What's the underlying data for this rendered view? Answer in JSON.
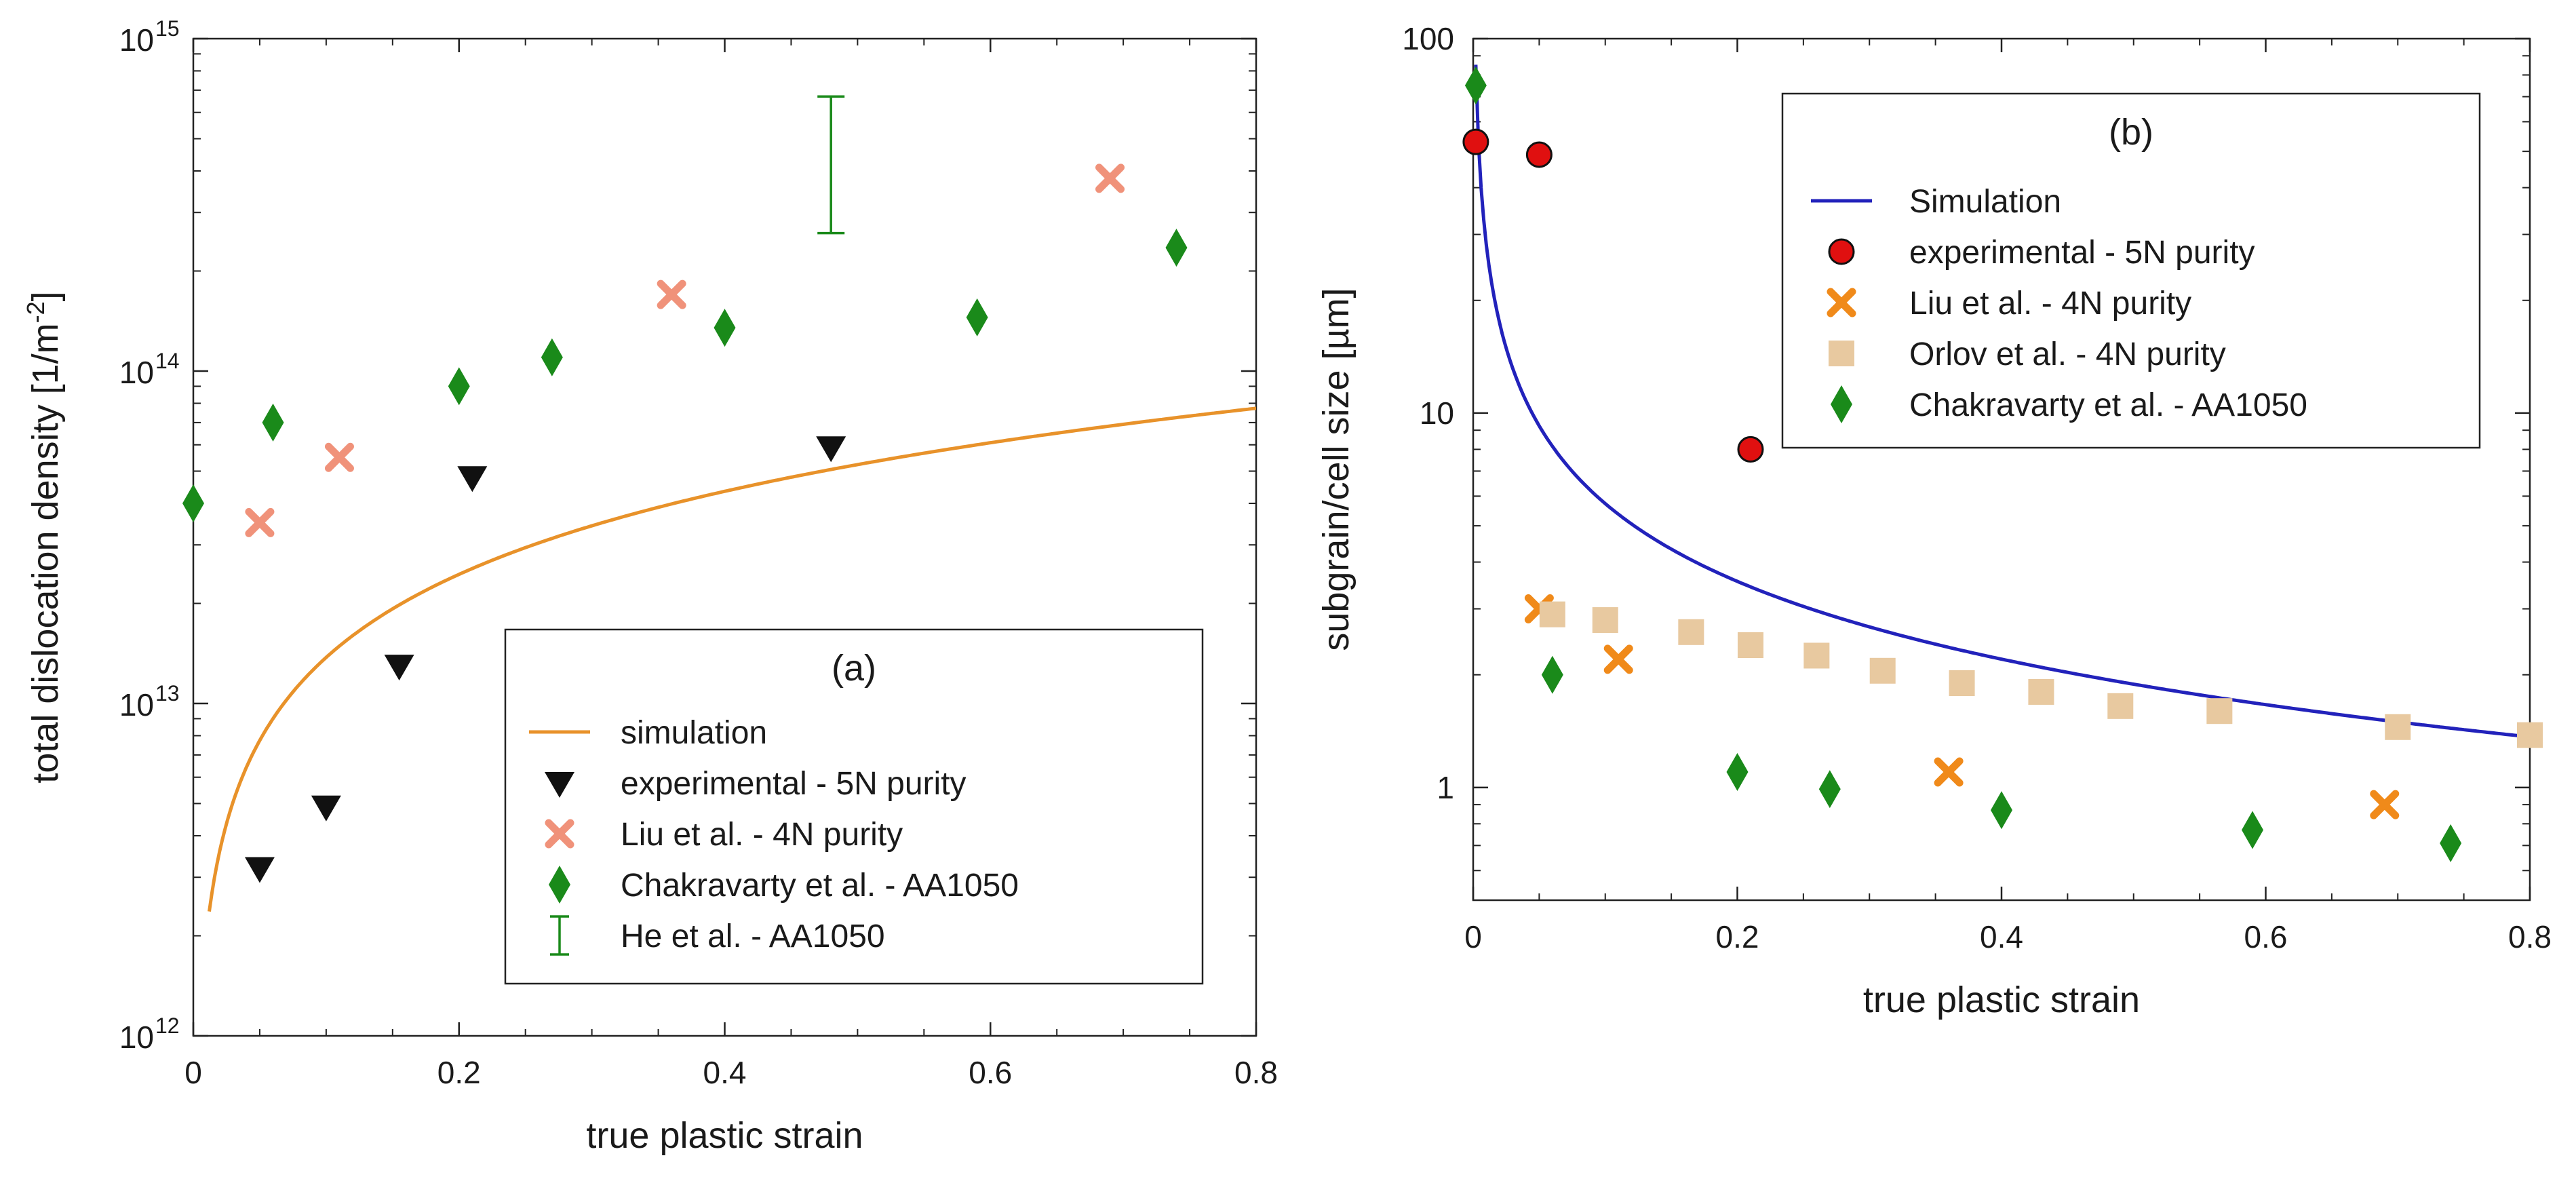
{
  "chart_data": [
    {
      "type": "scatter",
      "panel_label": "(a)",
      "xlabel": "true plastic strain",
      "ylabel": "total dislocation density [1/m",
      "ylabel_sup": "-2",
      "ylabel_close": "]",
      "xlim": [
        0,
        0.8
      ],
      "ylim_log": [
        1000000000000.0,
        1000000000000000.0
      ],
      "y_scale": "log",
      "x_ticks": [
        "0",
        "0.2",
        "0.4",
        "0.6",
        "0.8"
      ],
      "y_ticks": [
        {
          "value": 1000000000000.0,
          "base": "10",
          "exp": "12"
        },
        {
          "value": 10000000000000.0,
          "base": "10",
          "exp": "13"
        },
        {
          "value": 100000000000000.0,
          "base": "10",
          "exp": "14"
        },
        {
          "value": 1000000000000000.0,
          "base": "10",
          "exp": "15"
        }
      ],
      "legend_position": "bottom-right",
      "series": [
        {
          "name": "simulation",
          "marker": "line",
          "color": "#e8922a",
          "model": "power",
          "k": 93000000000000.0,
          "n": 0.83,
          "x_start": 0.012,
          "x_end": 0.8
        },
        {
          "name": "experimental - 5N purity",
          "marker": "triangle-down",
          "color": "#111111",
          "x": [
            0.05,
            0.1,
            0.155,
            0.21,
            0.48
          ],
          "y": [
            3200000000000.0,
            4900000000000.0,
            13000000000000.0,
            48000000000000.0,
            59000000000000.0
          ]
        },
        {
          "name": "Liu et al. - 4N purity",
          "marker": "x",
          "color": "#f0927a",
          "x": [
            0.05,
            0.11,
            0.36,
            0.69
          ],
          "y": [
            35000000000000.0,
            55000000000000.0,
            170000000000000.0,
            380000000000000.0
          ]
        },
        {
          "name": "Chakravarty et al. - AA1050",
          "marker": "diamond",
          "color": "#1a8a1a",
          "x": [
            0.0,
            0.06,
            0.2,
            0.27,
            0.4,
            0.59,
            0.74
          ],
          "y": [
            40000000000000.0,
            70000000000000.0,
            90000000000000.0,
            110000000000000.0,
            135000000000000.0,
            145000000000000.0,
            235000000000000.0
          ]
        },
        {
          "name": "He et al. - AA1050",
          "marker": "errorbar",
          "color": "#1a8a1a",
          "x": [
            0.48
          ],
          "y_low": [
            260000000000000.0
          ],
          "y_high": [
            670000000000000.0
          ]
        }
      ]
    },
    {
      "type": "scatter",
      "panel_label": "(b)",
      "xlabel": "true plastic strain",
      "ylabel": "subgrain/cell size [µm]",
      "xlim": [
        0,
        0.8
      ],
      "ylim_log": [
        0.5,
        100
      ],
      "y_scale": "log",
      "x_ticks": [
        "0",
        "0.2",
        "0.4",
        "0.6",
        "0.8"
      ],
      "y_ticks": [
        {
          "value": 1,
          "label": "1"
        },
        {
          "value": 10,
          "label": "10"
        },
        {
          "value": 100,
          "label": "100"
        }
      ],
      "legend_position": "top-right",
      "series": [
        {
          "name": "Simulation",
          "marker": "line",
          "color": "#2222bb",
          "model": "power",
          "k": 1.17,
          "n": -0.69,
          "x_start": 0.002,
          "x_end": 0.8
        },
        {
          "name": "experimental - 5N purity",
          "marker": "circle",
          "color": "#e01010",
          "x": [
            0.002,
            0.05,
            0.21
          ],
          "y": [
            53,
            49,
            8.0
          ]
        },
        {
          "name": "Liu et al. - 4N purity",
          "marker": "x",
          "color": "#f08a1a",
          "x": [
            0.05,
            0.11,
            0.36,
            0.69
          ],
          "y": [
            3.0,
            2.2,
            1.1,
            0.9
          ]
        },
        {
          "name": "Orlov et al. - 4N purity",
          "marker": "square",
          "color": "#e8c9a0",
          "x": [
            0.06,
            0.1,
            0.165,
            0.21,
            0.26,
            0.31,
            0.37,
            0.43,
            0.49,
            0.565,
            0.7,
            0.8
          ],
          "y": [
            2.9,
            2.8,
            2.6,
            2.4,
            2.25,
            2.05,
            1.9,
            1.8,
            1.65,
            1.6,
            1.45,
            1.38
          ]
        },
        {
          "name": "Chakravarty et al. - AA1050",
          "marker": "diamond",
          "color": "#1a8a1a",
          "x": [
            0.002,
            0.06,
            0.2,
            0.27,
            0.4,
            0.59,
            0.74
          ],
          "y": [
            75,
            2.0,
            1.1,
            0.99,
            0.87,
            0.77,
            0.71
          ]
        }
      ]
    }
  ]
}
